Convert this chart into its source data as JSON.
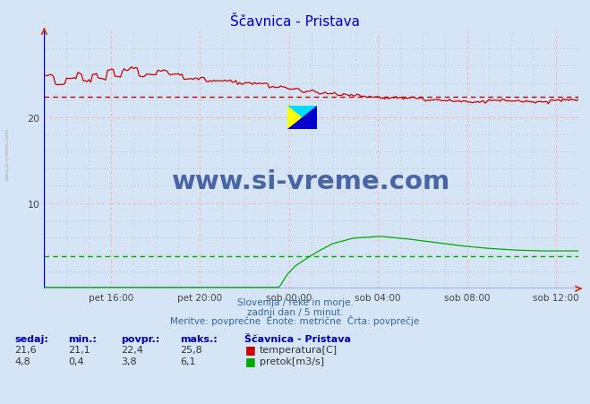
{
  "title": "Ščavnica - Pristava",
  "bg_color": "#d5e5f5",
  "grid_major_color": "#ffaaaa",
  "grid_minor_color": "#cccccc",
  "x_labels": [
    "pet 16:00",
    "pet 20:00",
    "sob 00:00",
    "sob 04:00",
    "sob 08:00",
    "sob 12:00"
  ],
  "x_tick_positions": [
    0.125,
    0.2917,
    0.4583,
    0.625,
    0.7917,
    0.9583
  ],
  "y_min": 0,
  "y_max": 30,
  "y_ticks": [
    10,
    20
  ],
  "temp_avg": 22.4,
  "flow_avg": 3.8,
  "temp_color": "#cc0000",
  "flow_color": "#00aa00",
  "blue_line_color": "#0000cc",
  "watermark_text": "www.si-vreme.com",
  "watermark_color": "#1a3a8a",
  "subtitle1": "Slovenija / reke in morje.",
  "subtitle2": "zadnji dan / 5 minut.",
  "subtitle3": "Meritve: povprečne  Enote: metrične  Črta: povprečje",
  "label_color": "#336699",
  "sedaj_temp": "21,6",
  "min_temp": "21,1",
  "povpr_temp": "22,4",
  "maks_temp": "25,8",
  "sedaj_flow": "4,8",
  "min_flow": "0,4",
  "povpr_flow": "3,8",
  "maks_flow": "6,1",
  "side_text": "www.si-vreme.com",
  "side_text_color": "#aaaaaa"
}
